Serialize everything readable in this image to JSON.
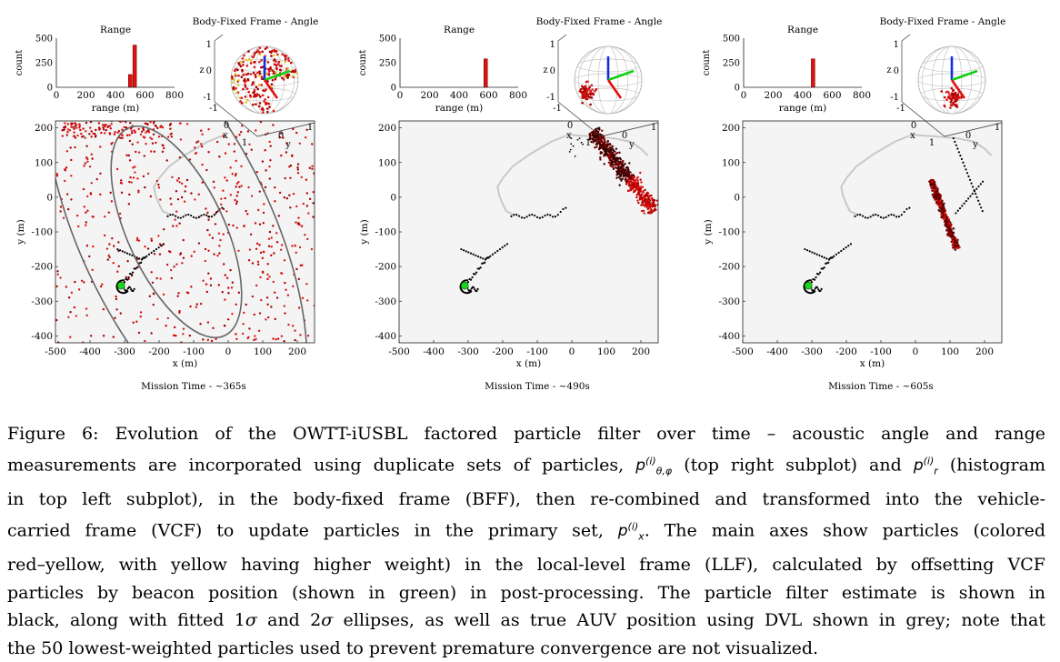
{
  "figure": {
    "panels": [
      {
        "mission_time": "Mission Time - ~365s",
        "hist_title": "Range",
        "hist_xlabel": "range (m)",
        "hist_ylabel": "count",
        "angle_title": "Body-Fixed Frame - Angle",
        "main_xlabel": "x (m)",
        "main_ylabel": "y (m)"
      },
      {
        "mission_time": "Mission Time - ~490s",
        "hist_title": "Range",
        "hist_xlabel": "range (m)",
        "hist_ylabel": "count",
        "angle_title": "Body-Fixed Frame - Angle",
        "main_xlabel": "x (m)",
        "main_ylabel": "y (m)"
      },
      {
        "mission_time": "Mission Time - ~605s",
        "hist_title": "Range",
        "hist_xlabel": "range (m)",
        "hist_ylabel": "count",
        "angle_title": "Body-Fixed Frame - Angle",
        "main_xlabel": "x (m)",
        "main_ylabel": "y (m)"
      }
    ]
  },
  "chart_data": [
    {
      "type": "scatter",
      "title": "Mission Time - ~365s",
      "xlabel": "x (m)",
      "ylabel": "y (m)",
      "xlim": [
        -500,
        250
      ],
      "ylim": [
        -420,
        220
      ],
      "xticks": [
        -500,
        -400,
        -300,
        -200,
        -100,
        0,
        100,
        200
      ],
      "yticks": [
        -400,
        -300,
        -200,
        -100,
        0,
        100,
        200
      ],
      "beacon": [
        -310,
        -255
      ],
      "particle_spread": "wide",
      "ellipses": [
        {
          "cx": -150,
          "cy": -100,
          "rx": 140,
          "ry": 330,
          "angle_deg": -25
        },
        {
          "cx": -150,
          "cy": -100,
          "rx": 280,
          "ry": 660,
          "angle_deg": -25
        }
      ],
      "histogram": {
        "xlim": [
          0,
          800
        ],
        "ylim": [
          0,
          500
        ],
        "xticks": [
          0,
          200,
          400,
          600,
          800
        ],
        "yticks": [
          0,
          250,
          500
        ],
        "bins": [
          {
            "x": 500,
            "count": 130
          },
          {
            "x": 530,
            "count": 430
          }
        ]
      },
      "angle_sphere": {
        "ticks_z": [
          "1",
          "0",
          "-1"
        ],
        "ticks_x": [
          "-1",
          "0",
          "1"
        ],
        "ticks_y": [
          "0",
          "1"
        ],
        "z_label": "z",
        "x_label": "x",
        "y_label": "y",
        "particles": "spread"
      }
    },
    {
      "type": "scatter",
      "title": "Mission Time - ~490s",
      "xlabel": "x (m)",
      "ylabel": "y (m)",
      "xlim": [
        -500,
        250
      ],
      "ylim": [
        -420,
        220
      ],
      "xticks": [
        -500,
        -400,
        -300,
        -200,
        -100,
        0,
        100,
        200
      ],
      "yticks": [
        -400,
        -300,
        -200,
        -100,
        0,
        100,
        200
      ],
      "beacon": [
        -310,
        -255
      ],
      "particle_spread": "arc",
      "histogram": {
        "xlim": [
          0,
          800
        ],
        "ylim": [
          0,
          500
        ],
        "xticks": [
          0,
          200,
          400,
          600,
          800
        ],
        "yticks": [
          0,
          250,
          500
        ],
        "bins": [
          {
            "x": 580,
            "count": 290
          }
        ]
      },
      "angle_sphere": {
        "ticks_z": [
          "1",
          "0",
          "-1"
        ],
        "ticks_x": [
          "-1",
          "0",
          "1"
        ],
        "ticks_y": [
          "0",
          "1"
        ],
        "z_label": "z",
        "x_label": "x",
        "y_label": "y",
        "particles": "cluster-left"
      }
    },
    {
      "type": "scatter",
      "title": "Mission Time - ~605s",
      "xlabel": "x (m)",
      "ylabel": "y (m)",
      "xlim": [
        -500,
        250
      ],
      "ylim": [
        -420,
        220
      ],
      "xticks": [
        -500,
        -400,
        -300,
        -200,
        -100,
        0,
        100,
        200
      ],
      "yticks": [
        -400,
        -300,
        -200,
        -100,
        0,
        100,
        200
      ],
      "beacon": [
        -310,
        -255
      ],
      "particle_spread": "narrow",
      "histogram": {
        "xlim": [
          0,
          800
        ],
        "ylim": [
          0,
          500
        ],
        "xticks": [
          0,
          200,
          400,
          600,
          800
        ],
        "yticks": [
          0,
          250,
          500
        ],
        "bins": [
          {
            "x": 470,
            "count": 290
          }
        ]
      },
      "angle_sphere": {
        "ticks_z": [
          "1",
          "0",
          "-1"
        ],
        "ticks_x": [
          "-1",
          "0",
          "1"
        ],
        "ticks_y": [
          "0",
          "1"
        ],
        "z_label": "z",
        "x_label": "x",
        "y_label": "y",
        "particles": "cluster-bottom"
      }
    }
  ],
  "caption": {
    "label": "Figure 6:",
    "l1": "Evolution of the OWTT-iUSBL factored particle filter over time – acoustic angle and range",
    "l2a": "measurements are incorporated using duplicate sets of particles,",
    "l2b": "(top right subplot) and",
    "l2c": "(histogram",
    "l3": "in top left subplot), in the body-fixed frame (BFF), then re-combined and transformed into the vehicle-",
    "l4a": "carried frame (VCF) to update particles in the primary set,",
    "l4b": ". The main axes show particles (colored",
    "l5": "red–yellow, with yellow having higher weight) in the local-level frame (LLF), calculated by offsetting VCF",
    "l6": "particles by beacon position (shown in green) in post-processing. The particle filter estimate is shown in",
    "l7a": "black, along with fitted 1",
    "l7b": " and 2",
    "l7c": " ellipses, as well as true AUV position using DVL shown in grey; note that",
    "l8": "the 50 lowest-weighted particles used to prevent premature convergence are not visualized.",
    "sym_sigma": "σ",
    "sym_p": "p",
    "sym_i": "(i)",
    "sym_thetaphi": "θ,φ",
    "sym_r": "r",
    "sym_x": "x"
  }
}
